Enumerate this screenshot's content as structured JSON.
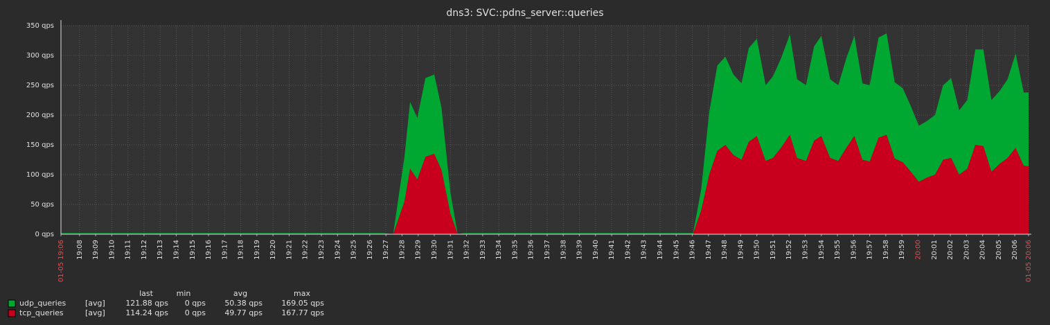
{
  "chart_data": {
    "type": "stacked_area",
    "title": "dns3: SVC::pdns_server::queries",
    "xlim": [
      0,
      60
    ],
    "xticks": [
      {
        "value": 0,
        "label": "01-05 19:06",
        "color": "#e05050"
      },
      {
        "value": 1.15,
        "label": "19:08"
      },
      {
        "value": 2.15,
        "label": "19:09"
      },
      {
        "value": 3.15,
        "label": "19:10"
      },
      {
        "value": 4.15,
        "label": "19:11"
      },
      {
        "value": 5.15,
        "label": "19:12"
      },
      {
        "value": 6.15,
        "label": "19:13"
      },
      {
        "value": 7.15,
        "label": "19:14"
      },
      {
        "value": 8.15,
        "label": "19:15"
      },
      {
        "value": 9.15,
        "label": "19:16"
      },
      {
        "value": 10.15,
        "label": "19:17"
      },
      {
        "value": 11.15,
        "label": "19:18"
      },
      {
        "value": 12.15,
        "label": "19:19"
      },
      {
        "value": 13.15,
        "label": "19:20"
      },
      {
        "value": 14.15,
        "label": "19:21"
      },
      {
        "value": 15.15,
        "label": "19:22"
      },
      {
        "value": 16.15,
        "label": "19:23"
      },
      {
        "value": 17.15,
        "label": "19:24"
      },
      {
        "value": 18.15,
        "label": "19:25"
      },
      {
        "value": 19.15,
        "label": "19:26"
      },
      {
        "value": 20.15,
        "label": "19:27"
      },
      {
        "value": 21.15,
        "label": "19:28"
      },
      {
        "value": 22.15,
        "label": "19:29"
      },
      {
        "value": 23.15,
        "label": "19:30"
      },
      {
        "value": 24.15,
        "label": "19:31"
      },
      {
        "value": 25.15,
        "label": "19:32"
      },
      {
        "value": 26.15,
        "label": "19:33"
      },
      {
        "value": 27.15,
        "label": "19:34"
      },
      {
        "value": 28.15,
        "label": "19:35"
      },
      {
        "value": 29.15,
        "label": "19:36"
      },
      {
        "value": 30.15,
        "label": "19:37"
      },
      {
        "value": 31.15,
        "label": "19:38"
      },
      {
        "value": 32.15,
        "label": "19:39"
      },
      {
        "value": 33.15,
        "label": "19:40"
      },
      {
        "value": 34.15,
        "label": "19:41"
      },
      {
        "value": 35.15,
        "label": "19:42"
      },
      {
        "value": 36.15,
        "label": "19:43"
      },
      {
        "value": 37.15,
        "label": "19:44"
      },
      {
        "value": 38.15,
        "label": "19:45"
      },
      {
        "value": 39.15,
        "label": "19:46"
      },
      {
        "value": 40.15,
        "label": "19:47"
      },
      {
        "value": 41.15,
        "label": "19:48"
      },
      {
        "value": 42.15,
        "label": "19:49"
      },
      {
        "value": 43.15,
        "label": "19:50"
      },
      {
        "value": 44.15,
        "label": "19:51"
      },
      {
        "value": 45.15,
        "label": "19:52"
      },
      {
        "value": 46.15,
        "label": "19:53"
      },
      {
        "value": 47.15,
        "label": "19:54"
      },
      {
        "value": 48.15,
        "label": "19:55"
      },
      {
        "value": 49.15,
        "label": "19:56"
      },
      {
        "value": 50.15,
        "label": "19:57"
      },
      {
        "value": 51.15,
        "label": "19:58"
      },
      {
        "value": 52.15,
        "label": "19:59"
      },
      {
        "value": 53.15,
        "label": "20:00",
        "color": "#e05050"
      },
      {
        "value": 54.15,
        "label": "20:01"
      },
      {
        "value": 55.15,
        "label": "20:02"
      },
      {
        "value": 56.15,
        "label": "20:03"
      },
      {
        "value": 57.15,
        "label": "20:04"
      },
      {
        "value": 58.15,
        "label": "20:05"
      },
      {
        "value": 59.15,
        "label": "20:06"
      },
      {
        "value": 60,
        "label": "01-05 20:06",
        "color": "#e05050"
      }
    ],
    "ylim": [
      0,
      350
    ],
    "yticks": [
      {
        "value": 0,
        "label": "0 qps"
      },
      {
        "value": 50,
        "label": "50 qps"
      },
      {
        "value": 100,
        "label": "100 qps"
      },
      {
        "value": 150,
        "label": "150 qps"
      },
      {
        "value": 200,
        "label": "200 qps"
      },
      {
        "value": 250,
        "label": "250 qps"
      },
      {
        "value": 300,
        "label": "300 qps"
      },
      {
        "value": 350,
        "label": "350 qps"
      }
    ],
    "grid": true,
    "x": [
      0,
      10,
      20,
      20.6,
      21.3,
      21.65,
      22.1,
      22.6,
      23.15,
      23.6,
      24.15,
      24.6,
      25,
      35,
      39.2,
      39.7,
      40.2,
      40.7,
      41.2,
      41.7,
      42.2,
      42.65,
      43.15,
      43.7,
      44.15,
      44.65,
      45.2,
      45.65,
      46.2,
      46.7,
      47.15,
      47.7,
      48.2,
      48.7,
      49.2,
      49.7,
      50.15,
      50.7,
      51.2,
      51.7,
      52.2,
      52.7,
      53.2,
      53.7,
      54.2,
      54.7,
      55.2,
      55.7,
      56.2,
      56.7,
      57.2,
      57.7,
      58.2,
      58.7,
      59.2,
      59.7,
      60
    ],
    "stat_columns": [
      "last",
      "min",
      "avg",
      "max"
    ],
    "series": [
      {
        "name": "udp_queries",
        "color": "#00a832",
        "func": "[avg]",
        "stats": [
          "121.88 qps",
          "0 qps",
          "50.38 qps",
          "169.05 qps"
        ],
        "values": [
          1,
          1,
          1,
          0,
          75,
          112,
          103,
          132,
          133,
          104,
          35,
          0,
          1,
          1,
          1,
          35,
          105,
          143,
          148,
          135,
          128,
          157,
          163,
          127,
          137,
          150,
          168,
          132,
          127,
          158,
          168,
          132,
          127,
          150,
          168,
          128,
          128,
          168,
          170,
          128,
          124,
          110,
          94,
          95,
          100,
          125,
          134,
          108,
          115,
          160,
          162,
          120,
          122,
          132,
          158,
          123,
          124
        ]
      },
      {
        "name": "tcp_queries",
        "color": "#c8001e",
        "func": "[avg]",
        "stats": [
          "114.24 qps",
          "0 qps",
          "49.77 qps",
          "167.77 qps"
        ],
        "values": [
          1,
          1,
          1,
          0,
          55,
          110,
          92,
          130,
          135,
          108,
          35,
          0,
          1,
          1,
          1,
          40,
          100,
          140,
          150,
          133,
          125,
          155,
          165,
          123,
          128,
          145,
          167,
          128,
          123,
          157,
          165,
          128,
          123,
          145,
          165,
          125,
          122,
          162,
          167,
          127,
          121,
          105,
          88,
          95,
          100,
          125,
          128,
          100,
          110,
          150,
          148,
          105,
          118,
          128,
          145,
          115,
          114
        ]
      }
    ]
  }
}
